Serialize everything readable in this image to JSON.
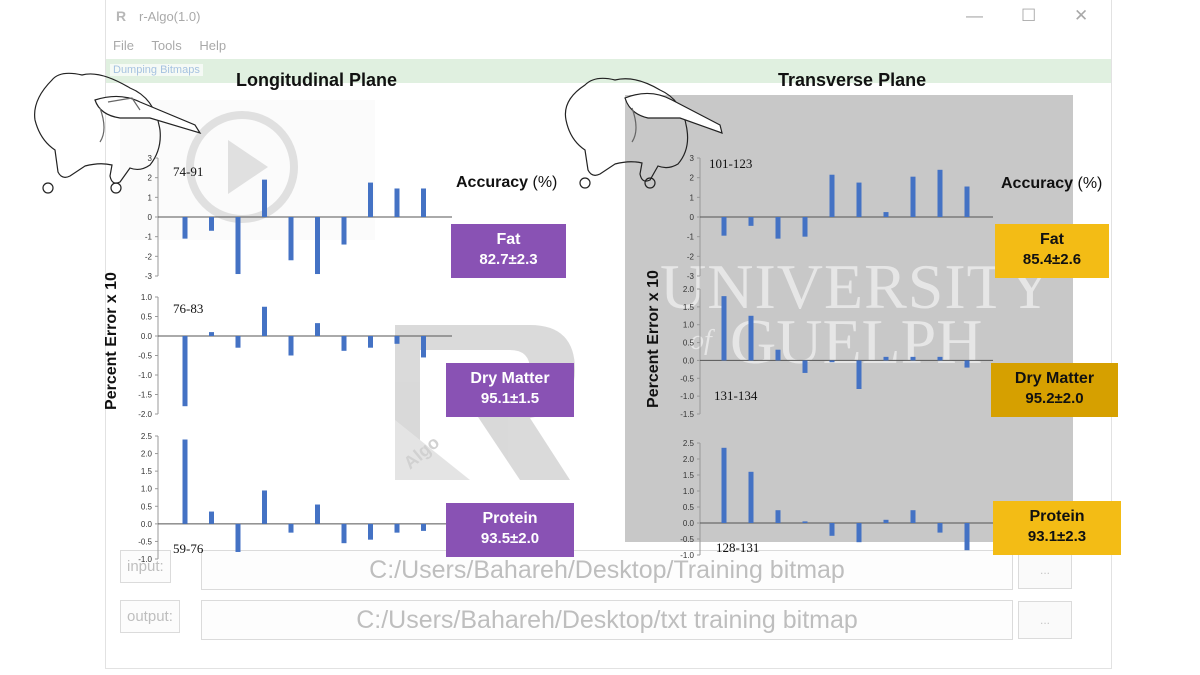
{
  "window": {
    "title": "r-Algo(1.0)",
    "menu": [
      "File",
      "Tools",
      "Help"
    ],
    "tab": "Dumping Bitmaps",
    "input_label": "input:",
    "input_value": "C:/Users/Bahareh/Desktop/Training bitmap",
    "output_label": "output:",
    "output_value": "C:/Users/Bahareh/Desktop/txt training bitmap",
    "browse_label": "...",
    "min_icon": "minimize-icon",
    "max_icon": "maximize-icon",
    "close_icon": "close-icon"
  },
  "logos": {
    "university_line1": "UNIVERSITY",
    "university_line2": "GUELPH",
    "university_of": "of",
    "algo_text": "Algo"
  },
  "shared": {
    "ylabel": "Percent Error x 10",
    "accuracy_label": "Accuracy",
    "accuracy_unit": "(%)"
  },
  "panels": [
    {
      "title": "Longitudinal Plane",
      "color": "#8952b4"
    },
    {
      "title": "Transverse Plane",
      "color": "#d6a000"
    }
  ],
  "badges": [
    {
      "name": "Fat",
      "value": "82.7±2.3"
    },
    {
      "name": "Dry Matter",
      "value": "95.1±1.5"
    },
    {
      "name": "Protein",
      "value": "93.5±2.0"
    },
    {
      "name": "Fat",
      "value": "85.4±2.6"
    },
    {
      "name": "Dry Matter",
      "value": "95.2±2.0"
    },
    {
      "name": "Protein",
      "value": "93.1±2.3"
    }
  ],
  "chart_data": [
    {
      "type": "bar",
      "panel": "Longitudinal Plane",
      "trait": "Fat",
      "annotation": "74-91",
      "ylim": [
        -3,
        3
      ],
      "yticks": [
        3,
        2,
        1,
        0,
        -1,
        -2,
        -3
      ],
      "tick_format": "int",
      "ylabel": "Percent Error x 10",
      "values": [
        -1.1,
        -0.7,
        -2.9,
        1.9,
        -2.2,
        -2.9,
        -1.4,
        1.75,
        1.45,
        1.45
      ]
    },
    {
      "type": "bar",
      "panel": "Longitudinal Plane",
      "trait": "Dry Matter",
      "annotation": "76-83",
      "ylim": [
        -2.0,
        1.0
      ],
      "yticks": [
        1.0,
        0.5,
        0.0,
        -0.5,
        -1.0,
        -1.5,
        -2.0
      ],
      "tick_format": "1dp",
      "ylabel": "Percent Error x 10",
      "values": [
        -1.8,
        0.1,
        -0.3,
        0.75,
        -0.5,
        0.33,
        -0.38,
        -0.3,
        -0.2,
        -0.55
      ]
    },
    {
      "type": "bar",
      "panel": "Longitudinal Plane",
      "trait": "Protein",
      "annotation": "59-76",
      "ylim": [
        -1.0,
        2.5
      ],
      "yticks": [
        2.5,
        2.0,
        1.5,
        1.0,
        0.5,
        0.0,
        -0.5,
        -1.0
      ],
      "tick_format": "1dp",
      "ylabel": "Percent Error x 10",
      "values": [
        2.4,
        0.35,
        -0.8,
        0.95,
        -0.25,
        0.55,
        -0.55,
        -0.45,
        -0.25,
        -0.2
      ]
    },
    {
      "type": "bar",
      "panel": "Transverse Plane",
      "trait": "Fat",
      "annotation": "101-123",
      "ylim": [
        -3,
        3
      ],
      "yticks": [
        3,
        2,
        1,
        0,
        -1,
        -2,
        -3
      ],
      "tick_format": "int",
      "ylabel": "Percent Error x 10",
      "values": [
        -0.95,
        -0.45,
        -1.1,
        -1.0,
        2.15,
        1.75,
        0.25,
        2.05,
        2.4,
        1.55
      ]
    },
    {
      "type": "bar",
      "panel": "Transverse Plane",
      "trait": "Dry Matter",
      "annotation": "131-134",
      "ylim": [
        -1.5,
        2.0
      ],
      "yticks": [
        2.0,
        1.5,
        1.0,
        0.5,
        0.0,
        -0.5,
        -1.0,
        -1.5
      ],
      "tick_format": "1dp",
      "ylabel": "Percent Error x 10",
      "values": [
        1.8,
        1.25,
        0.3,
        -0.35,
        -0.05,
        -0.8,
        0.1,
        0.1,
        0.1,
        -0.2
      ]
    },
    {
      "type": "bar",
      "panel": "Transverse Plane",
      "trait": "Protein",
      "annotation": "128-131",
      "ylim": [
        -1.0,
        2.5
      ],
      "yticks": [
        2.5,
        2.0,
        1.5,
        1.0,
        0.5,
        0.0,
        -0.5,
        -1.0
      ],
      "tick_format": "1dp",
      "ylabel": "Percent Error x 10",
      "values": [
        2.35,
        1.6,
        0.4,
        0.05,
        -0.4,
        -0.6,
        0.1,
        0.4,
        -0.3,
        -0.85
      ]
    }
  ]
}
